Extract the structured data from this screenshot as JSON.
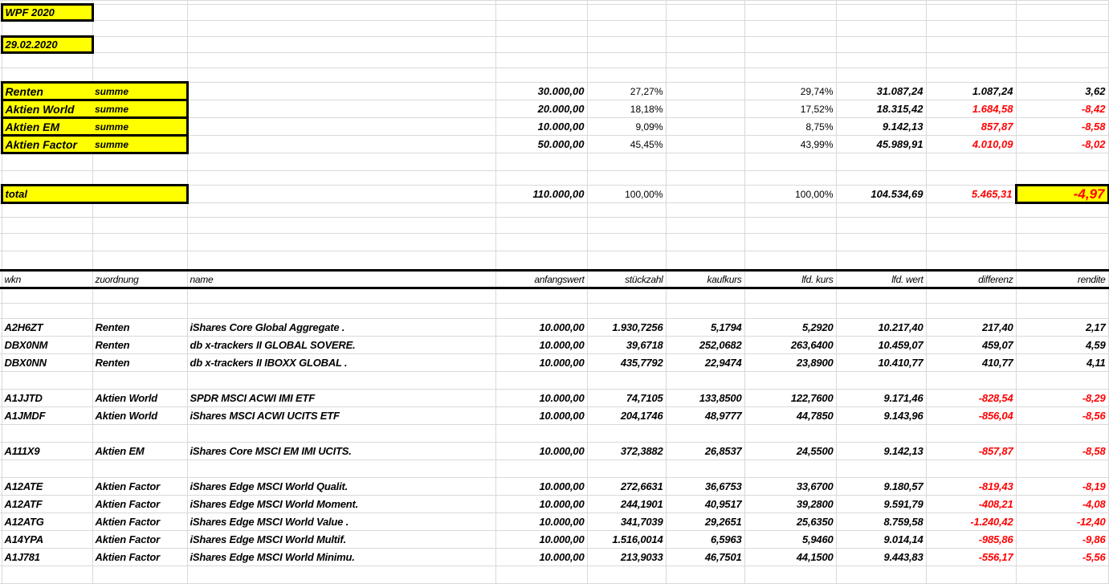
{
  "header": {
    "title": "WPF 2020",
    "date": "29.02.2020"
  },
  "summary": {
    "rows": [
      {
        "category": "Renten",
        "label": "summe",
        "anfangswert": "30.000,00",
        "anteil_start": "27,27%",
        "anteil_aktuell": "29,74%",
        "lfd_wert": "31.087,24",
        "differenz": "1.087,24",
        "rendite": "3,62",
        "negative": false
      },
      {
        "category": "Aktien World",
        "label": "summe",
        "anfangswert": "20.000,00",
        "anteil_start": "18,18%",
        "anteil_aktuell": "17,52%",
        "lfd_wert": "18.315,42",
        "differenz": "1.684,58",
        "rendite": "-8,42",
        "negative": true
      },
      {
        "category": "Aktien EM",
        "label": "summe",
        "anfangswert": "10.000,00",
        "anteil_start": "9,09%",
        "anteil_aktuell": "8,75%",
        "lfd_wert": "9.142,13",
        "differenz": "857,87",
        "rendite": "-8,58",
        "negative": true
      },
      {
        "category": "Aktien Factor",
        "label": "summe",
        "anfangswert": "50.000,00",
        "anteil_start": "45,45%",
        "anteil_aktuell": "43,99%",
        "lfd_wert": "45.989,91",
        "differenz": "4.010,09",
        "rendite": "-8,02",
        "negative": true
      }
    ],
    "total": {
      "label": "total",
      "anfangswert": "110.000,00",
      "anteil_start": "100,00%",
      "anteil_aktuell": "100,00%",
      "lfd_wert": "104.534,69",
      "differenz": "5.465,31",
      "rendite": "-4,97"
    }
  },
  "columns": [
    "wkn",
    "zuordnung",
    "name",
    "anfangswert",
    "stückzahl",
    "kaufkurs",
    "lfd. kurs",
    "lfd. wert",
    "differenz",
    "rendite"
  ],
  "positions": [
    {
      "wkn": "A2H6ZT",
      "zuordnung": "Renten",
      "name": "iShares Core Global Aggregate .",
      "anfangswert": "10.000,00",
      "stueckzahl": "1.930,7256",
      "kaufkurs": "5,1794",
      "lfd_kurs": "5,2920",
      "lfd_wert": "10.217,40",
      "differenz": "217,40",
      "rendite": "2,17",
      "negative": false
    },
    {
      "wkn": "DBX0NM",
      "zuordnung": "Renten",
      "name": "db x-trackers II GLOBAL SOVERE.",
      "anfangswert": "10.000,00",
      "stueckzahl": "39,6718",
      "kaufkurs": "252,0682",
      "lfd_kurs": "263,6400",
      "lfd_wert": "10.459,07",
      "differenz": "459,07",
      "rendite": "4,59",
      "negative": false
    },
    {
      "wkn": "DBX0NN",
      "zuordnung": "Renten",
      "name": "db x-trackers II IBOXX GLOBAL .",
      "anfangswert": "10.000,00",
      "stueckzahl": "435,7792",
      "kaufkurs": "22,9474",
      "lfd_kurs": "23,8900",
      "lfd_wert": "10.410,77",
      "differenz": "410,77",
      "rendite": "4,11",
      "negative": false
    },
    null,
    {
      "wkn": "A1JJTD",
      "zuordnung": "Aktien World",
      "name": "SPDR MSCI ACWI IMI ETF",
      "anfangswert": "10.000,00",
      "stueckzahl": "74,7105",
      "kaufkurs": "133,8500",
      "lfd_kurs": "122,7600",
      "lfd_wert": "9.171,46",
      "differenz": "-828,54",
      "rendite": "-8,29",
      "negative": true
    },
    {
      "wkn": "A1JMDF",
      "zuordnung": "Aktien World",
      "name": "iShares MSCI ACWI UCITS ETF",
      "anfangswert": "10.000,00",
      "stueckzahl": "204,1746",
      "kaufkurs": "48,9777",
      "lfd_kurs": "44,7850",
      "lfd_wert": "9.143,96",
      "differenz": "-856,04",
      "rendite": "-8,56",
      "negative": true
    },
    null,
    {
      "wkn": "A111X9",
      "zuordnung": "Aktien EM",
      "name": "iShares Core MSCI EM IMI UCITS.",
      "anfangswert": "10.000,00",
      "stueckzahl": "372,3882",
      "kaufkurs": "26,8537",
      "lfd_kurs": "24,5500",
      "lfd_wert": "9.142,13",
      "differenz": "-857,87",
      "rendite": "-8,58",
      "negative": true
    },
    null,
    {
      "wkn": "A12ATE",
      "zuordnung": "Aktien Factor",
      "name": "iShares Edge MSCI World Qualit.",
      "anfangswert": "10.000,00",
      "stueckzahl": "272,6631",
      "kaufkurs": "36,6753",
      "lfd_kurs": "33,6700",
      "lfd_wert": "9.180,57",
      "differenz": "-819,43",
      "rendite": "-8,19",
      "negative": true
    },
    {
      "wkn": "A12ATF",
      "zuordnung": "Aktien Factor",
      "name": "iShares Edge MSCI World Moment.",
      "anfangswert": "10.000,00",
      "stueckzahl": "244,1901",
      "kaufkurs": "40,9517",
      "lfd_kurs": "39,2800",
      "lfd_wert": "9.591,79",
      "differenz": "-408,21",
      "rendite": "-4,08",
      "negative": true
    },
    {
      "wkn": "A12ATG",
      "zuordnung": "Aktien Factor",
      "name": "iShares Edge MSCI World Value .",
      "anfangswert": "10.000,00",
      "stueckzahl": "341,7039",
      "kaufkurs": "29,2651",
      "lfd_kurs": "25,6350",
      "lfd_wert": "8.759,58",
      "differenz": "-1.240,42",
      "rendite": "-12,40",
      "negative": true
    },
    {
      "wkn": "A14YPA",
      "zuordnung": "Aktien Factor",
      "name": "iShares Edge MSCI World Multif.",
      "anfangswert": "10.000,00",
      "stueckzahl": "1.516,0014",
      "kaufkurs": "6,5963",
      "lfd_kurs": "5,9460",
      "lfd_wert": "9.014,14",
      "differenz": "-985,86",
      "rendite": "-9,86",
      "negative": true
    },
    {
      "wkn": "A1J781",
      "zuordnung": "Aktien Factor",
      "name": "iShares Edge MSCI World Minimu.",
      "anfangswert": "10.000,00",
      "stueckzahl": "213,9033",
      "kaufkurs": "46,7501",
      "lfd_kurs": "44,1500",
      "lfd_wert": "9.443,83",
      "differenz": "-556,17",
      "rendite": "-5,56",
      "negative": true
    }
  ],
  "colors": {
    "highlight": "#ffff00",
    "negative": "#ff0000",
    "gridline": "#d9d9d9"
  }
}
